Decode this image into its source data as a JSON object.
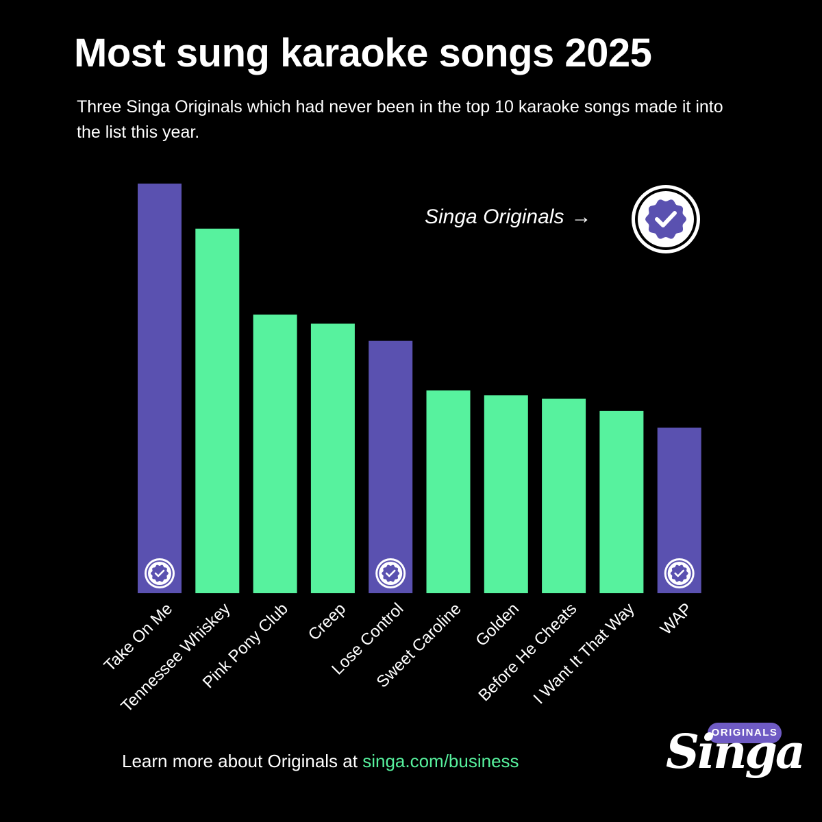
{
  "title": "Most sung karaoke songs 2025",
  "subtitle": "Three Singa Originals which had never been in the top 10 karaoke songs made it into the list this year.",
  "legend": {
    "label": "Singa Originals",
    "arrow": "→",
    "badge_icon": "check-badge-icon"
  },
  "footer": {
    "text": "Learn more about Originals at ",
    "link": "singa.com/business"
  },
  "logo": {
    "pill": "ORIGINALS",
    "wordmark": "Singa"
  },
  "colors": {
    "original": "#5a51b0",
    "other": "#57f29e",
    "background": "#000000",
    "text": "#ffffff"
  },
  "chart_data": {
    "type": "bar",
    "title": "Most sung karaoke songs 2025",
    "categories": [
      "Take On Me",
      "Tennessee Whiskey",
      "Pink Pony Club",
      "Creep",
      "Lose Control",
      "Sweet Caroline",
      "Golden",
      "Before He Cheats",
      "I Want It That Way",
      "WAP"
    ],
    "values": [
      100,
      89,
      68,
      65.8,
      61.6,
      49.5,
      48.3,
      47.5,
      44.5,
      40.4
    ],
    "singa_original": [
      true,
      false,
      false,
      false,
      true,
      false,
      false,
      false,
      false,
      true
    ],
    "ylim": [
      0,
      100
    ],
    "grid": false,
    "legend_position": "top-right"
  }
}
